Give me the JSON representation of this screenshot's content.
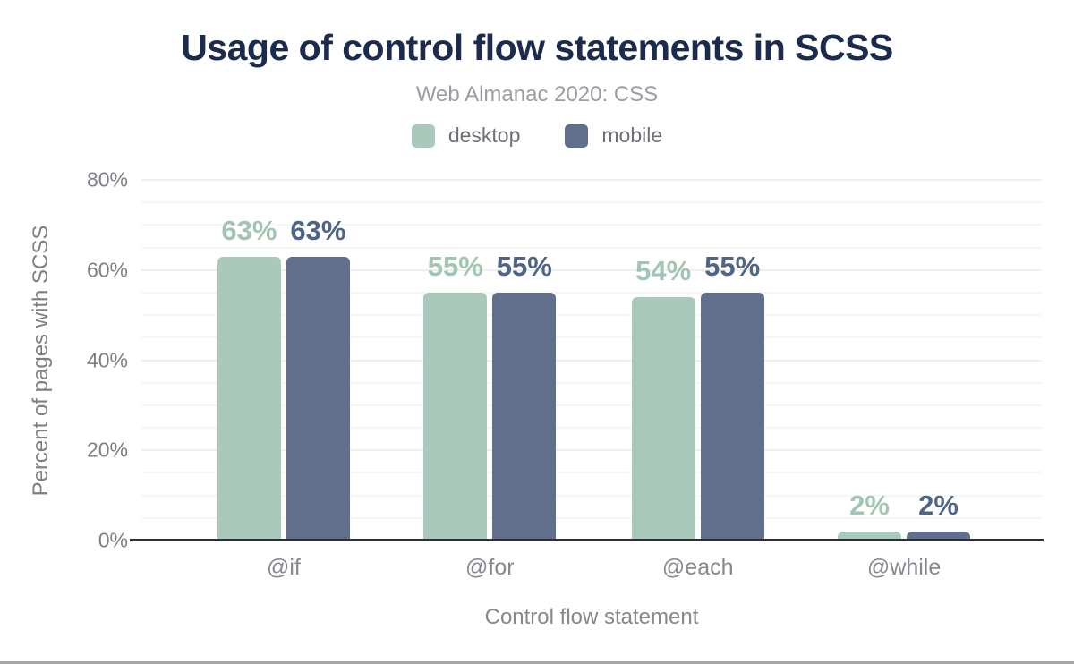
{
  "chart_data": {
    "type": "bar",
    "title": "Usage of control flow statements in SCSS",
    "subtitle": "Web Almanac 2020: CSS",
    "categories": [
      "@if",
      "@for",
      "@each",
      "@while"
    ],
    "series": [
      {
        "name": "desktop",
        "color": "#a9cabb",
        "label_color": "#a0c6b3",
        "values": [
          63,
          55,
          54,
          2
        ],
        "value_labels": [
          "63%",
          "55%",
          "54%",
          "2%"
        ]
      },
      {
        "name": "mobile",
        "color": "#60708c",
        "label_color": "#4f6588",
        "values": [
          63,
          55,
          55,
          2
        ],
        "value_labels": [
          "63%",
          "55%",
          "55%",
          "2%"
        ]
      }
    ],
    "xlabel": "Control flow statement",
    "ylabel": "Percent of pages with SCSS",
    "ylim": [
      0,
      80
    ],
    "yticks": [
      {
        "value": 0,
        "label": "0%"
      },
      {
        "value": 20,
        "label": "20%"
      },
      {
        "value": 40,
        "label": "40%"
      },
      {
        "value": 60,
        "label": "60%"
      },
      {
        "value": 80,
        "label": "80%"
      }
    ],
    "minor_grid_step": 5,
    "major_grid_step": 20,
    "grid": true,
    "legend_position": "top-center",
    "colors": {
      "title": "#1b2b4d",
      "subtitle": "#9a9da2",
      "axis_text": "#7c7f84",
      "category_text": "#85888d",
      "legend_text": "#6d7076",
      "axis_line": "#2d2f33",
      "grid_major": "#efefef",
      "grid_minor": "#f6f6f6",
      "background": "#ffffff",
      "bottom_border": "#a6a6a6"
    }
  }
}
